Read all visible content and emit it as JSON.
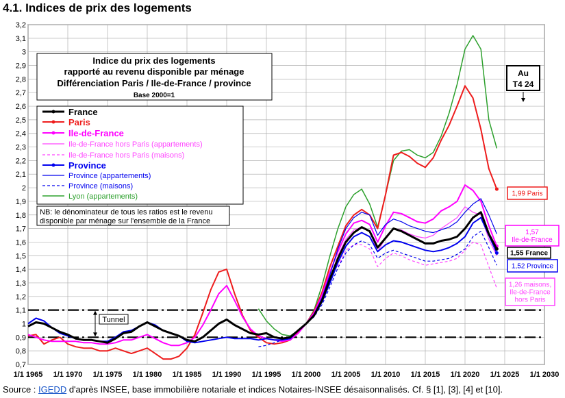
{
  "page": {
    "title": "4.1. Indices de prix des logements",
    "source_prefix": "Source : ",
    "source_link": "IGEDD",
    "source_rest": " d'après INSEE, base immobilière notariale et indices Notaires-INSEE désaisonnalisés. Cf. § [1], [3], [4] et [10]."
  },
  "chart_data": {
    "type": "line",
    "title_lines": [
      "Indice du prix des logements",
      "rapporté au revenu disponible par ménage",
      "Différenciation Paris / Ile-de-France / province"
    ],
    "base_note": "Base 2000=1",
    "xlabel": "",
    "ylabel": "",
    "xlim": [
      1965,
      2030
    ],
    "ylim": [
      0.7,
      3.2
    ],
    "x_ticks": [
      "1/1 1965",
      "1/1 1970",
      "1/1 1975",
      "1/1 1980",
      "1/1 1985",
      "1/1 1990",
      "1/1 1995",
      "1/1 2000",
      "1/1 2005",
      "1/1 2010",
      "1/1 2015",
      "1/1 2020",
      "1/1 2025",
      "1/1 2030"
    ],
    "y_ticks": [
      "0,7",
      "0,8",
      "0,9",
      "1",
      "1,1",
      "1,2",
      "1,3",
      "1,4",
      "1,5",
      "1,6",
      "1,7",
      "1,8",
      "1,9",
      "2",
      "2,1",
      "2,2",
      "2,3",
      "2,4",
      "2,5",
      "2,6",
      "2,7",
      "2,8",
      "2,9",
      "3",
      "3,1",
      "3,2"
    ],
    "grid": true,
    "tunnel": {
      "label": "Tunnel",
      "lower": 0.9,
      "upper": 1.1
    },
    "at_label_lines": [
      "Au",
      "T4 24"
    ],
    "note_lines": [
      "NB: le dénominateur de tous les ratios est le revenu",
      "disponible par ménage sur l'ensemble de la France"
    ],
    "series": [
      {
        "name": "France",
        "color": "#000000",
        "width": 3,
        "dash": "",
        "marker": true,
        "end_label": [
          "1,55 France"
        ],
        "end_box": "#000000",
        "x": [
          1965,
          1966,
          1967,
          1968,
          1969,
          1970,
          1971,
          1972,
          1973,
          1974,
          1975,
          1976,
          1977,
          1978,
          1979,
          1980,
          1981,
          1982,
          1983,
          1984,
          1985,
          1986,
          1987,
          1988,
          1989,
          1990,
          1991,
          1992,
          1993,
          1994,
          1995,
          1996,
          1997,
          1998,
          1999,
          2000,
          2001,
          2002,
          2003,
          2004,
          2005,
          2006,
          2007,
          2008,
          2009,
          2010,
          2011,
          2012,
          2013,
          2014,
          2015,
          2016,
          2017,
          2018,
          2019,
          2020,
          2021,
          2022,
          2023,
          2024
        ],
        "y": [
          0.98,
          1.01,
          1.0,
          0.97,
          0.94,
          0.92,
          0.89,
          0.88,
          0.88,
          0.87,
          0.86,
          0.89,
          0.93,
          0.94,
          0.98,
          1.01,
          0.98,
          0.95,
          0.93,
          0.91,
          0.88,
          0.87,
          0.9,
          0.95,
          1.0,
          1.03,
          0.99,
          0.96,
          0.93,
          0.92,
          0.93,
          0.9,
          0.89,
          0.9,
          0.95,
          1.0,
          1.06,
          1.17,
          1.33,
          1.48,
          1.6,
          1.67,
          1.71,
          1.68,
          1.56,
          1.63,
          1.7,
          1.68,
          1.65,
          1.62,
          1.59,
          1.59,
          1.61,
          1.62,
          1.64,
          1.7,
          1.78,
          1.82,
          1.66,
          1.55
        ]
      },
      {
        "name": "Paris",
        "color": "#ee1c1c",
        "width": 2,
        "dash": "",
        "marker": true,
        "end_label": [
          "1,99 Paris"
        ],
        "end_box": "#ee1c1c",
        "x": [
          1965,
          1966,
          1967,
          1968,
          1969,
          1970,
          1971,
          1972,
          1973,
          1974,
          1975,
          1976,
          1977,
          1978,
          1979,
          1980,
          1981,
          1982,
          1983,
          1984,
          1985,
          1986,
          1987,
          1988,
          1989,
          1990,
          1991,
          1992,
          1993,
          1994,
          1995,
          1996,
          1997,
          1998,
          1999,
          2000,
          2001,
          2002,
          2003,
          2004,
          2005,
          2006,
          2007,
          2008,
          2009,
          2010,
          2011,
          2012,
          2013,
          2014,
          2015,
          2016,
          2017,
          2018,
          2019,
          2020,
          2021,
          2022,
          2023,
          2024
        ],
        "y": [
          0.91,
          0.92,
          0.85,
          0.88,
          0.9,
          0.85,
          0.83,
          0.82,
          0.82,
          0.8,
          0.8,
          0.82,
          0.8,
          0.78,
          0.8,
          0.82,
          0.78,
          0.74,
          0.74,
          0.76,
          0.82,
          0.92,
          1.08,
          1.25,
          1.38,
          1.4,
          1.22,
          1.06,
          0.95,
          0.9,
          0.86,
          0.85,
          0.86,
          0.88,
          0.94,
          1.0,
          1.09,
          1.23,
          1.42,
          1.57,
          1.72,
          1.8,
          1.84,
          1.8,
          1.7,
          1.95,
          2.24,
          2.26,
          2.23,
          2.18,
          2.15,
          2.22,
          2.35,
          2.46,
          2.6,
          2.75,
          2.66,
          2.43,
          2.14,
          1.99
        ]
      },
      {
        "name": "Ile-de-France",
        "color": "#ff00ff",
        "width": 2,
        "dash": "",
        "marker": true,
        "end_label": [
          "1,57",
          "Ile-de-France"
        ],
        "end_box": "#ff00ff",
        "x": [
          1965,
          1966,
          1967,
          1968,
          1969,
          1970,
          1971,
          1972,
          1973,
          1974,
          1975,
          1976,
          1977,
          1978,
          1979,
          1980,
          1981,
          1982,
          1983,
          1984,
          1985,
          1986,
          1987,
          1988,
          1989,
          1990,
          1991,
          1992,
          1993,
          1994,
          1995,
          1996,
          1997,
          1998,
          1999,
          2000,
          2001,
          2002,
          2003,
          2004,
          2005,
          2006,
          2007,
          2008,
          2009,
          2010,
          2011,
          2012,
          2013,
          2014,
          2015,
          2016,
          2017,
          2018,
          2019,
          2020,
          2021,
          2022,
          2023,
          2024
        ],
        "y": [
          0.92,
          0.9,
          0.88,
          0.87,
          0.87,
          0.87,
          0.87,
          0.86,
          0.86,
          0.85,
          0.85,
          0.86,
          0.88,
          0.88,
          0.9,
          0.92,
          0.89,
          0.86,
          0.84,
          0.84,
          0.86,
          0.9,
          0.99,
          1.1,
          1.22,
          1.28,
          1.17,
          1.05,
          0.96,
          0.91,
          0.89,
          0.88,
          0.87,
          0.88,
          0.93,
          1.0,
          1.08,
          1.21,
          1.38,
          1.53,
          1.66,
          1.74,
          1.76,
          1.73,
          1.6,
          1.72,
          1.82,
          1.81,
          1.78,
          1.75,
          1.74,
          1.77,
          1.83,
          1.86,
          1.9,
          2.02,
          1.98,
          1.9,
          1.72,
          1.57
        ]
      },
      {
        "name": "Ile-de-France hors Paris (appartements)",
        "color": "#ff44ff",
        "width": 1.2,
        "dash": "",
        "marker": false,
        "end_label": [],
        "end_box": "",
        "x": [
          2004,
          2005,
          2006,
          2007,
          2008,
          2009,
          2010,
          2011,
          2012,
          2013,
          2014,
          2015,
          2016,
          2017,
          2018,
          2019,
          2020,
          2021,
          2022,
          2023,
          2024
        ],
        "y": [
          1.5,
          1.62,
          1.69,
          1.71,
          1.68,
          1.53,
          1.63,
          1.7,
          1.69,
          1.66,
          1.64,
          1.63,
          1.65,
          1.7,
          1.74,
          1.78,
          1.86,
          1.82,
          1.8,
          1.62,
          1.5
        ]
      },
      {
        "name": "Ile-de-France hors Paris (maisons)",
        "color": "#ff44ff",
        "width": 1.2,
        "dash": "4,3",
        "marker": false,
        "end_label": [
          "1,26 maisons,",
          "Ile-de-France",
          "hors Paris"
        ],
        "end_box": "#ff44ff",
        "x": [
          2004,
          2005,
          2006,
          2007,
          2008,
          2009,
          2010,
          2011,
          2012,
          2013,
          2014,
          2015,
          2016,
          2017,
          2018,
          2019,
          2020,
          2021,
          2022,
          2023,
          2024
        ],
        "y": [
          1.42,
          1.54,
          1.58,
          1.58,
          1.55,
          1.42,
          1.48,
          1.52,
          1.5,
          1.47,
          1.45,
          1.43,
          1.44,
          1.45,
          1.46,
          1.48,
          1.54,
          1.6,
          1.58,
          1.42,
          1.26
        ]
      },
      {
        "name": "Province",
        "color": "#0000ee",
        "width": 2,
        "dash": "",
        "marker": true,
        "end_label": [
          "1,52 Province"
        ],
        "end_box": "#0000ee",
        "x": [
          1965,
          1966,
          1967,
          1968,
          1969,
          1970,
          1971,
          1972,
          1973,
          1974,
          1975,
          1976,
          1977,
          1978,
          1979,
          1980,
          1981,
          1982,
          1983,
          1984,
          1985,
          1986,
          1987,
          1988,
          1989,
          1990,
          1991,
          1992,
          1993,
          1994,
          1995,
          1996,
          1997,
          1998,
          1999,
          2000,
          2001,
          2002,
          2003,
          2004,
          2005,
          2006,
          2007,
          2008,
          2009,
          2010,
          2011,
          2012,
          2013,
          2014,
          2015,
          2016,
          2017,
          2018,
          2019,
          2020,
          2021,
          2022,
          2023,
          2024
        ],
        "y": [
          1.0,
          1.04,
          1.02,
          0.97,
          0.93,
          0.91,
          0.89,
          0.88,
          0.88,
          0.87,
          0.87,
          0.9,
          0.94,
          0.95,
          0.98,
          1.01,
          0.99,
          0.95,
          0.93,
          0.91,
          0.87,
          0.86,
          0.87,
          0.88,
          0.89,
          0.9,
          0.89,
          0.89,
          0.89,
          0.88,
          0.89,
          0.88,
          0.88,
          0.89,
          0.95,
          1.0,
          1.06,
          1.16,
          1.3,
          1.45,
          1.57,
          1.64,
          1.67,
          1.64,
          1.53,
          1.58,
          1.61,
          1.6,
          1.58,
          1.56,
          1.54,
          1.53,
          1.54,
          1.56,
          1.59,
          1.64,
          1.74,
          1.78,
          1.65,
          1.52
        ]
      },
      {
        "name": "Province (appartements)",
        "color": "#0000ee",
        "width": 1.2,
        "dash": "",
        "marker": false,
        "end_label": [],
        "end_box": "",
        "x": [
          1996,
          1997,
          1998,
          1999,
          2000,
          2001,
          2002,
          2003,
          2004,
          2005,
          2006,
          2007,
          2008,
          2009,
          2010,
          2011,
          2012,
          2013,
          2014,
          2015,
          2016,
          2017,
          2018,
          2019,
          2020,
          2021,
          2022,
          2023,
          2024
        ],
        "y": [
          0.88,
          0.88,
          0.9,
          0.95,
          1.0,
          1.07,
          1.19,
          1.36,
          1.55,
          1.7,
          1.78,
          1.82,
          1.8,
          1.65,
          1.73,
          1.77,
          1.75,
          1.72,
          1.7,
          1.68,
          1.67,
          1.69,
          1.71,
          1.75,
          1.82,
          1.88,
          1.92,
          1.8,
          1.66
        ]
      },
      {
        "name": "Province (maisons)",
        "color": "#0000ee",
        "width": 1.2,
        "dash": "4,3",
        "marker": false,
        "end_label": [],
        "end_box": "",
        "x": [
          1994,
          1995,
          1996,
          1997,
          1998,
          1999,
          2000,
          2001,
          2002,
          2003,
          2004,
          2005,
          2006,
          2007,
          2008,
          2009,
          2010,
          2011,
          2012,
          2013,
          2014,
          2015,
          2016,
          2017,
          2018,
          2019,
          2020,
          2021,
          2022,
          2023,
          2024
        ],
        "y": [
          0.83,
          0.84,
          0.86,
          0.88,
          0.9,
          0.95,
          1.0,
          1.05,
          1.14,
          1.27,
          1.41,
          1.52,
          1.58,
          1.61,
          1.58,
          1.48,
          1.52,
          1.54,
          1.52,
          1.5,
          1.48,
          1.46,
          1.46,
          1.47,
          1.48,
          1.51,
          1.55,
          1.64,
          1.68,
          1.56,
          1.43
        ]
      },
      {
        "name": "Lyon (appartements)",
        "color": "#2ca02c",
        "width": 1.5,
        "dash": "",
        "marker": false,
        "end_label": [],
        "end_box": "",
        "x": [
          1994,
          1995,
          1996,
          1997,
          1998,
          1999,
          2000,
          2001,
          2002,
          2003,
          2004,
          2005,
          2006,
          2007,
          2008,
          2009,
          2010,
          2011,
          2012,
          2013,
          2014,
          2015,
          2016,
          2017,
          2018,
          2019,
          2020,
          2021,
          2022,
          2023,
          2024
        ],
        "y": [
          1.11,
          1.02,
          0.96,
          0.92,
          0.91,
          0.95,
          1.0,
          1.1,
          1.28,
          1.5,
          1.7,
          1.86,
          1.95,
          1.99,
          1.88,
          1.71,
          1.95,
          2.2,
          2.27,
          2.28,
          2.24,
          2.22,
          2.26,
          2.38,
          2.55,
          2.76,
          3.02,
          3.12,
          3.02,
          2.5,
          2.29
        ]
      }
    ]
  }
}
